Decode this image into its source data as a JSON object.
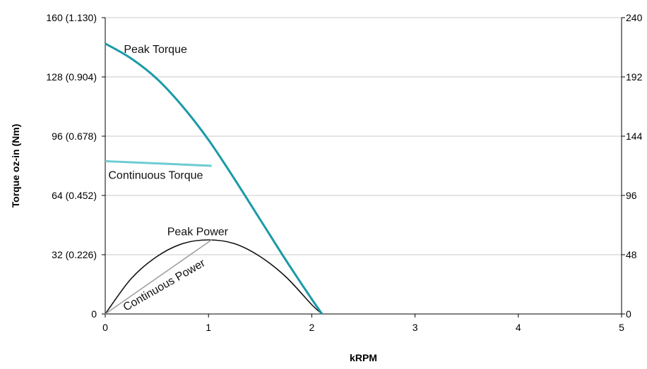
{
  "chart_data": {
    "type": "line",
    "xlabel": "kRPM",
    "ylabel": "Torque oz-in (Nm)",
    "xlim": [
      0,
      5
    ],
    "ylim_left": [
      0,
      160
    ],
    "ylim_right": [
      0,
      240
    ],
    "x_ticks": [
      {
        "value": 0,
        "label": "0"
      },
      {
        "value": 1,
        "label": "1"
      },
      {
        "value": 2,
        "label": "2"
      },
      {
        "value": 3,
        "label": "3"
      },
      {
        "value": 4,
        "label": "4"
      },
      {
        "value": 5,
        "label": "5"
      }
    ],
    "y_ticks_left": [
      {
        "value": 0,
        "label": "0"
      },
      {
        "value": 32,
        "label": "32 (0.226)"
      },
      {
        "value": 64,
        "label": "64 (0.452)"
      },
      {
        "value": 96,
        "label": "96 (0.678)"
      },
      {
        "value": 128,
        "label": "128 (0.904)"
      },
      {
        "value": 160,
        "label": "160 (1.130)"
      }
    ],
    "y_ticks_right": [
      {
        "value": 0,
        "label": "0"
      },
      {
        "value": 48,
        "label": "48"
      },
      {
        "value": 96,
        "label": "96"
      },
      {
        "value": 144,
        "label": "144"
      },
      {
        "value": 192,
        "label": "192"
      },
      {
        "value": 240,
        "label": "240"
      }
    ],
    "grid": "horizontal",
    "series": [
      {
        "name": "Peak Torque",
        "color": "#1a9aa8",
        "width": 3,
        "points": [
          [
            0,
            146
          ],
          [
            0.25,
            138
          ],
          [
            0.5,
            127
          ],
          [
            0.75,
            112
          ],
          [
            1.0,
            94
          ],
          [
            1.25,
            73
          ],
          [
            1.5,
            51
          ],
          [
            1.75,
            29
          ],
          [
            2.0,
            8
          ],
          [
            2.1,
            0
          ]
        ]
      },
      {
        "name": "Continuous Torque",
        "color": "#6ccbd2",
        "width": 3,
        "points": [
          [
            0,
            82.5
          ],
          [
            1.03,
            80
          ]
        ]
      },
      {
        "name": "Peak Power",
        "color": "#111111",
        "width": 1.6,
        "points": [
          [
            0,
            0
          ],
          [
            0.25,
            19
          ],
          [
            0.5,
            31
          ],
          [
            0.75,
            38
          ],
          [
            1.0,
            40
          ],
          [
            1.25,
            38
          ],
          [
            1.5,
            31
          ],
          [
            1.75,
            20
          ],
          [
            2.0,
            5
          ],
          [
            2.1,
            0
          ]
        ]
      },
      {
        "name": "Continuous Power",
        "color": "#a0a0a0",
        "width": 1.6,
        "points": [
          [
            0,
            0
          ],
          [
            1.03,
            40
          ]
        ]
      }
    ],
    "annotations": [
      {
        "text": "Peak Torque",
        "x": 0.18,
        "y": 141,
        "rotate": 0
      },
      {
        "text": "Continuous Torque",
        "x": 0.03,
        "y": 73,
        "rotate": 0
      },
      {
        "text": "Peak Power",
        "x": 0.6,
        "y": 42.5,
        "rotate": 0
      },
      {
        "text": "Continuous Power",
        "x": 0.2,
        "y": 1.5,
        "rotate": -30
      }
    ]
  }
}
